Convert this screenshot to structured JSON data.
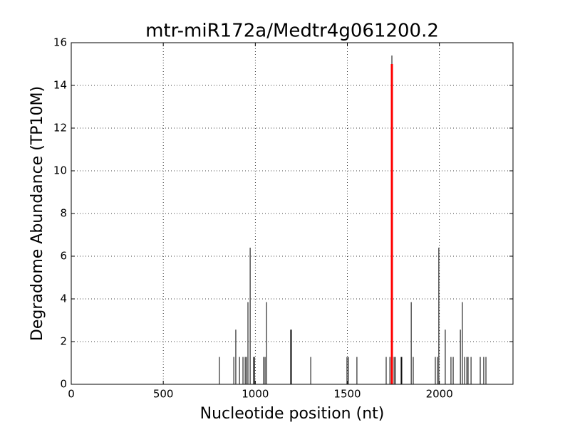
{
  "chart_data": {
    "type": "stem",
    "title": "mtr-miR172a/Medtr4g061200.2",
    "x_label": "Nucleotide position (nt)",
    "y_label": "Degradome Abundance (TP10M)",
    "xlim": [
      0,
      2400
    ],
    "xticks": [
      0,
      500,
      1000,
      1500,
      2000
    ],
    "ylim": [
      0,
      16
    ],
    "yticks": [
      0,
      2,
      4,
      6,
      8,
      10,
      12,
      14,
      16
    ],
    "grid": true,
    "series": [
      {
        "color": "#000000",
        "linewidth": 1,
        "x": [
          805,
          883,
          894,
          914,
          933,
          945,
          952,
          960,
          972,
          991,
          995,
          1045,
          1053,
          1061,
          1192,
          1196,
          1301,
          1498,
          1506,
          1552,
          1711,
          1731,
          1742,
          1754,
          1761,
          1792,
          1796,
          1847,
          1858,
          1978,
          1990,
          1997,
          2032,
          2063,
          2075,
          2114,
          2125,
          2137,
          2149,
          2156,
          2172,
          2222,
          2241,
          2253
        ],
        "values": [
          1.28,
          1.28,
          2.56,
          1.28,
          1.28,
          1.28,
          1.28,
          3.85,
          6.4,
          1.28,
          1.28,
          1.28,
          1.28,
          3.85,
          2.56,
          2.56,
          1.28,
          1.28,
          1.28,
          1.28,
          1.28,
          1.28,
          15.4,
          1.28,
          1.28,
          1.28,
          1.28,
          3.85,
          1.28,
          1.28,
          1.28,
          6.4,
          2.56,
          1.28,
          1.28,
          2.56,
          3.85,
          1.28,
          1.28,
          1.28,
          1.28,
          1.28,
          1.28,
          1.28
        ]
      },
      {
        "color": "#ff0000",
        "linewidth": 3,
        "x": [
          1742
        ],
        "values": [
          15
        ]
      }
    ]
  }
}
